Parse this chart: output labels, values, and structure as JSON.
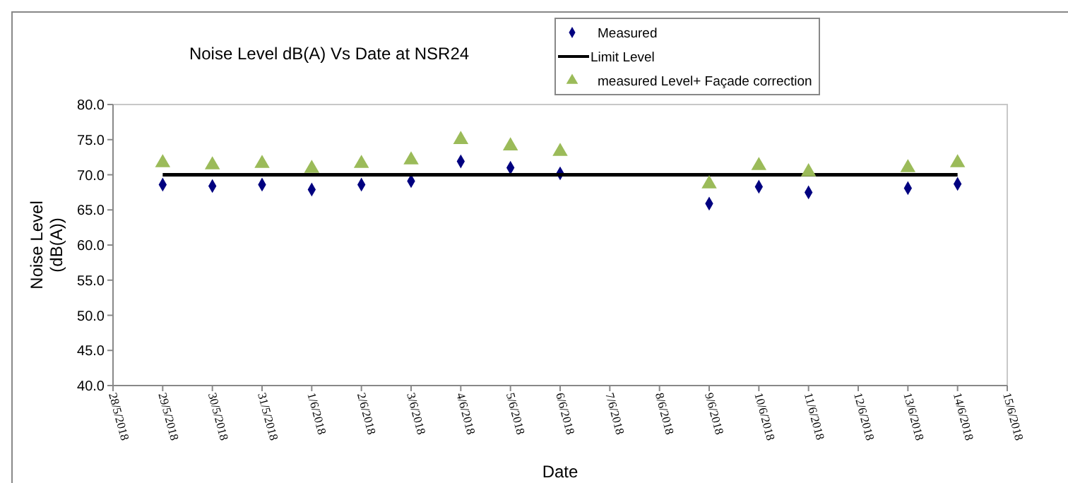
{
  "chart_data": {
    "type": "scatter",
    "title": "Noise Level dB(A) Vs Date at NSR24",
    "xlabel": "Date",
    "ylabel": "Noise Level (dB(A))",
    "x": [
      "2018-05-29",
      "2018-05-30",
      "2018-05-31",
      "2018-06-01",
      "2018-06-02",
      "2018-06-03",
      "2018-06-04",
      "2018-06-05",
      "2018-06-06",
      "2018-06-09",
      "2018-06-10",
      "2018-06-11",
      "2018-06-13",
      "2018-06-14"
    ],
    "series": [
      {
        "name": "Measured",
        "color": "#000080",
        "marker": "diamond",
        "values": [
          68.6,
          68.4,
          68.6,
          67.9,
          68.6,
          69.1,
          71.9,
          71.0,
          70.2,
          65.9,
          68.3,
          67.5,
          68.1,
          68.7
        ]
      },
      {
        "name": "Limit Level",
        "type": "line",
        "color": "#000000",
        "marker": "none",
        "x": [
          "2018-05-29",
          "2018-06-14"
        ],
        "values": [
          70,
          70
        ]
      },
      {
        "name": "measured Level+ Façade correction",
        "color": "#9bbb59",
        "marker": "triangle",
        "values": [
          71.7,
          71.4,
          71.6,
          70.9,
          71.6,
          72.1,
          75.0,
          74.1,
          73.3,
          68.7,
          71.3,
          70.4,
          71.0,
          71.7
        ]
      }
    ],
    "xlim": [
      "2018-05-28",
      "2018-06-15"
    ],
    "xticks": [
      {
        "value": "2018-05-28",
        "label": "28/5/2018"
      },
      {
        "value": "2018-05-29",
        "label": "29/5/2018"
      },
      {
        "value": "2018-05-30",
        "label": "30/5/2018"
      },
      {
        "value": "2018-05-31",
        "label": "31/5/2018"
      },
      {
        "value": "2018-06-01",
        "label": "1/6/2018"
      },
      {
        "value": "2018-06-02",
        "label": "2/6/2018"
      },
      {
        "value": "2018-06-03",
        "label": "3/6/2018"
      },
      {
        "value": "2018-06-04",
        "label": "4/6/2018"
      },
      {
        "value": "2018-06-05",
        "label": "5/6/2018"
      },
      {
        "value": "2018-06-06",
        "label": "6/6/2018"
      },
      {
        "value": "2018-06-07",
        "label": "7/6/2018"
      },
      {
        "value": "2018-06-08",
        "label": "8/6/2018"
      },
      {
        "value": "2018-06-09",
        "label": "9/6/2018"
      },
      {
        "value": "2018-06-10",
        "label": "10/6/2018"
      },
      {
        "value": "2018-06-11",
        "label": "11/6/2018"
      },
      {
        "value": "2018-06-12",
        "label": "12/6/2018"
      },
      {
        "value": "2018-06-13",
        "label": "13/6/2018"
      },
      {
        "value": "2018-06-14",
        "label": "14/6/2018"
      },
      {
        "value": "2018-06-15",
        "label": "15/6/2018"
      }
    ],
    "ylim": [
      40,
      80
    ],
    "yticks": [
      {
        "value": 40,
        "label": "40.0"
      },
      {
        "value": 45,
        "label": "45.0"
      },
      {
        "value": 50,
        "label": "50.0"
      },
      {
        "value": 55,
        "label": "55.0"
      },
      {
        "value": 60,
        "label": "60.0"
      },
      {
        "value": 65,
        "label": "65.0"
      },
      {
        "value": 70,
        "label": "70.0"
      },
      {
        "value": 75,
        "label": "75.0"
      },
      {
        "value": 80,
        "label": "80.0"
      }
    ],
    "grid": false,
    "legend": "top right"
  }
}
